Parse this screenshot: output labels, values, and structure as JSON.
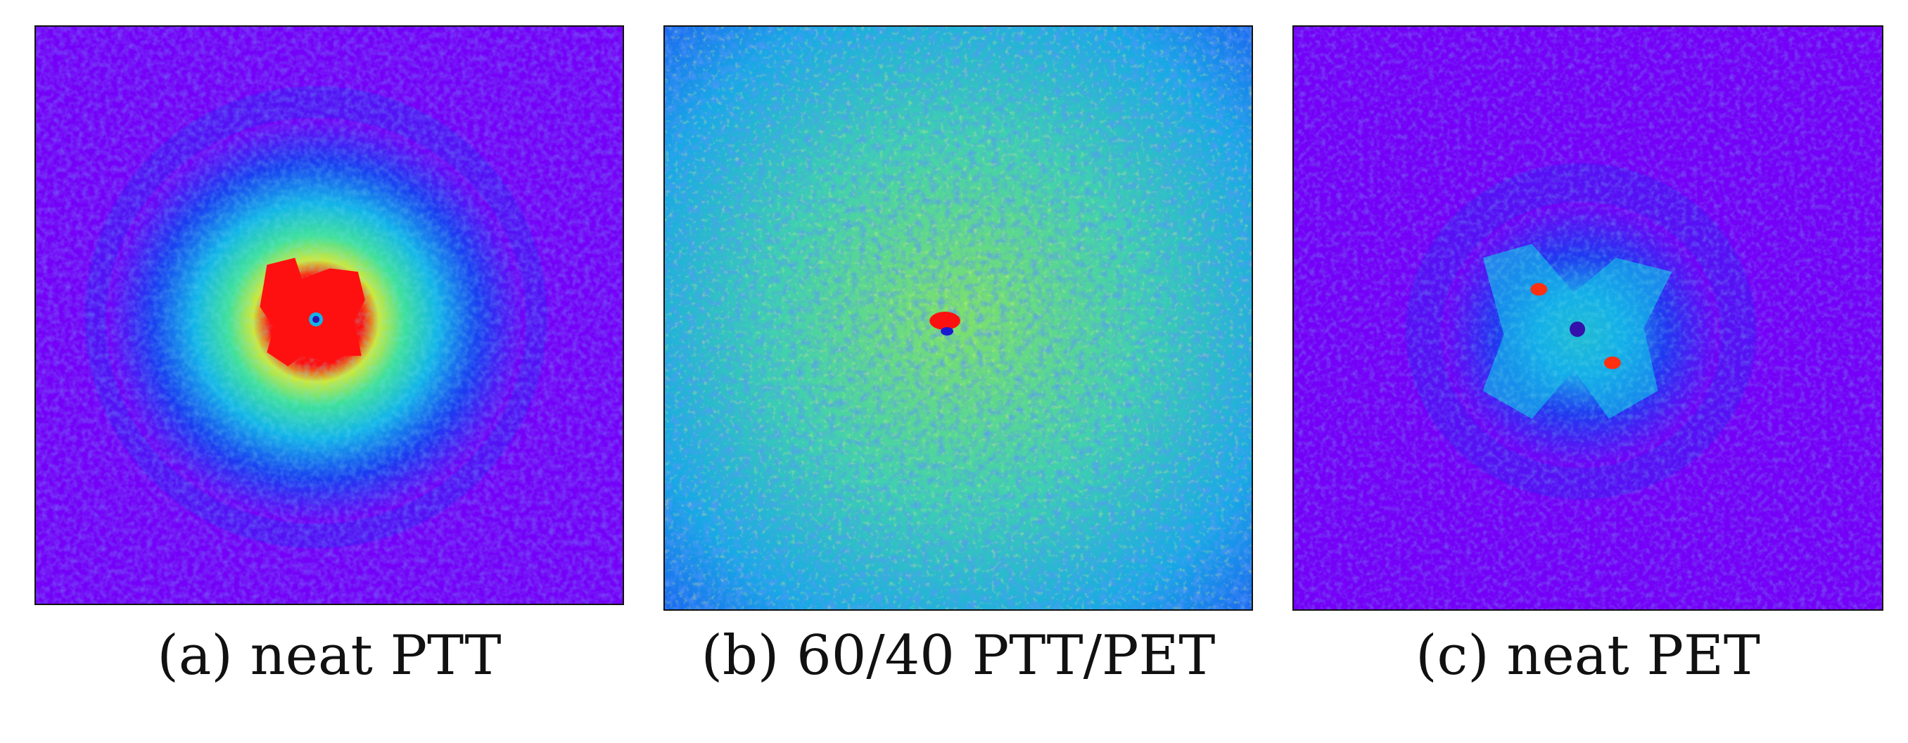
{
  "figure": {
    "panels": [
      {
        "id": "a",
        "caption": "(a) neat PTT",
        "image": "diffraction-pattern-neat-ptt"
      },
      {
        "id": "b",
        "caption": "(b) 60/40 PTT/PET",
        "image": "diffraction-pattern-60-40-ptt-pet"
      },
      {
        "id": "c",
        "caption": "(c) neat PET",
        "image": "diffraction-pattern-neat-pet"
      }
    ],
    "colors": {
      "background": "#7400f7",
      "blue": "#1a3cf0",
      "cyan": "#12b4e8",
      "green": "#3fe09a",
      "yellow": "#cfe83a",
      "red": "#ff1010",
      "center": "#3311aa"
    }
  }
}
